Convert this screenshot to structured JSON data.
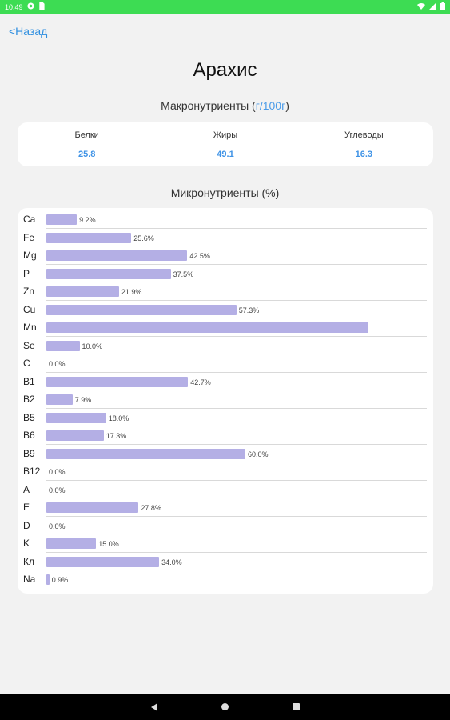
{
  "status_bar": {
    "time": "10:49",
    "icons": [
      "notification-icon",
      "sim-icon",
      "wifi-icon",
      "signal-icon",
      "battery-icon"
    ]
  },
  "back_label": "<Назад",
  "title": "Арахис",
  "macros": {
    "heading_main": "Макронутриенты (",
    "heading_unit": "г/100г",
    "heading_end": ")",
    "items": [
      {
        "label": "Белки",
        "value": "25.8"
      },
      {
        "label": "Жиры",
        "value": "49.1"
      },
      {
        "label": "Углеводы",
        "value": "16.3"
      }
    ]
  },
  "micros": {
    "heading": "Микронутриенты (%)",
    "items": [
      {
        "label": "Ca",
        "value": 9.2,
        "text": "9.2%"
      },
      {
        "label": "Fe",
        "value": 25.6,
        "text": "25.6%"
      },
      {
        "label": "Mg",
        "value": 42.5,
        "text": "42.5%"
      },
      {
        "label": "P",
        "value": 37.5,
        "text": "37.5%"
      },
      {
        "label": "Zn",
        "value": 21.9,
        "text": "21.9%"
      },
      {
        "label": "Cu",
        "value": 57.3,
        "text": "57.3%"
      },
      {
        "label": "Mn",
        "value": 97.0,
        "text": ""
      },
      {
        "label": "Se",
        "value": 10.0,
        "text": "10.0%"
      },
      {
        "label": "C",
        "value": 0.0,
        "text": "0.0%"
      },
      {
        "label": "B1",
        "value": 42.7,
        "text": "42.7%"
      },
      {
        "label": "B2",
        "value": 7.9,
        "text": "7.9%"
      },
      {
        "label": "B5",
        "value": 18.0,
        "text": "18.0%"
      },
      {
        "label": "B6",
        "value": 17.3,
        "text": "17.3%"
      },
      {
        "label": "B9",
        "value": 60.0,
        "text": "60.0%"
      },
      {
        "label": "B12",
        "value": 0.0,
        "text": "0.0%"
      },
      {
        "label": "A",
        "value": 0.0,
        "text": "0.0%"
      },
      {
        "label": "E",
        "value": 27.8,
        "text": "27.8%"
      },
      {
        "label": "D",
        "value": 0.0,
        "text": "0.0%"
      },
      {
        "label": "K",
        "value": 15.0,
        "text": "15.0%"
      },
      {
        "label": "Кл",
        "value": 34.0,
        "text": "34.0%"
      },
      {
        "label": "Na",
        "value": 0.9,
        "text": "0.9%"
      }
    ]
  },
  "nav_bar": {
    "buttons": [
      "back-nav-icon",
      "home-nav-icon",
      "recents-nav-icon"
    ]
  },
  "colors": {
    "accent": "#2f8fe0",
    "status_bar": "#3ddc53",
    "bar_fill": "#b4afe5"
  }
}
